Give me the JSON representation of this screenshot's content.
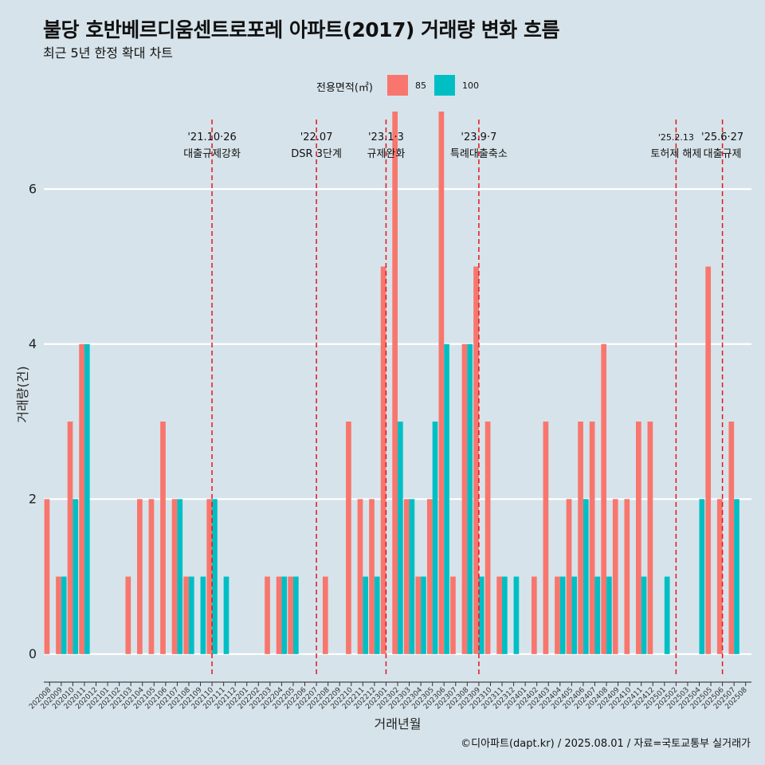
{
  "title": "불당 호반베르디움센트로포레 아파트(2017) 거래량 변화 흐름",
  "subtitle": "최근 5년 한정 확대 차트",
  "caption": "©디아파트(dapt.kr) / 2025.08.01 / 자료=국토교통부 실거래가",
  "legend": {
    "title": "전용면적(㎡)",
    "items": [
      {
        "label": "85",
        "color": "#F8766D"
      },
      {
        "label": "100",
        "color": "#00BFC4"
      }
    ]
  },
  "chart_data": {
    "type": "bar",
    "xlabel": "거래년월",
    "ylabel": "거래량(건)",
    "ylim": [
      -0.3,
      7.0
    ],
    "yticks": [
      0,
      2,
      4,
      6
    ],
    "grid": true,
    "legend_position": "top",
    "categories": [
      "202008",
      "202009",
      "202010",
      "202011",
      "202012",
      "202101",
      "202102",
      "202103",
      "202104",
      "202105",
      "202106",
      "202107",
      "202108",
      "202109",
      "202110",
      "202111",
      "202112",
      "202201",
      "202202",
      "202203",
      "202204",
      "202205",
      "202206",
      "202207",
      "202208",
      "202209",
      "202210",
      "202211",
      "202212",
      "202301",
      "202302",
      "202303",
      "202304",
      "202305",
      "202306",
      "202307",
      "202308",
      "202309",
      "202310",
      "202311",
      "202312",
      "202401",
      "202402",
      "202403",
      "202404",
      "202405",
      "202406",
      "202407",
      "202408",
      "202409",
      "202410",
      "202411",
      "202412",
      "202501",
      "202502",
      "202503",
      "202504",
      "202505",
      "202506",
      "202507",
      "202508"
    ],
    "series": [
      {
        "name": "85",
        "color": "#F8766D",
        "values": [
          2,
          1,
          3,
          4,
          0,
          0,
          0,
          1,
          2,
          2,
          3,
          2,
          1,
          0,
          2,
          0,
          0,
          0,
          0,
          1,
          1,
          1,
          0,
          0,
          1,
          0,
          3,
          2,
          2,
          5,
          7,
          2,
          1,
          2,
          7,
          1,
          4,
          5,
          3,
          1,
          0,
          0,
          1,
          3,
          1,
          2,
          3,
          3,
          4,
          2,
          2,
          3,
          3,
          0,
          0,
          0,
          0,
          5,
          2,
          3,
          0
        ]
      },
      {
        "name": "100",
        "color": "#00BFC4",
        "values": [
          0,
          1,
          2,
          4,
          0,
          0,
          0,
          0,
          0,
          0,
          0,
          2,
          1,
          1,
          2,
          1,
          0,
          0,
          0,
          0,
          1,
          1,
          0,
          0,
          0,
          0,
          0,
          1,
          1,
          0,
          3,
          2,
          1,
          3,
          4,
          0,
          4,
          1,
          0,
          1,
          1,
          0,
          0,
          0,
          1,
          1,
          2,
          1,
          1,
          0,
          0,
          1,
          0,
          1,
          0,
          0,
          2,
          0,
          0,
          2,
          0
        ]
      }
    ],
    "annotations": [
      {
        "x": "202110",
        "date": "'21.10·26",
        "text": "대출규제강화"
      },
      {
        "x": "202207",
        "date": "'22.07",
        "text": "DSR 3단계"
      },
      {
        "x": "202301",
        "date": "'23.1·3",
        "text": "규제완화"
      },
      {
        "x": "202309",
        "date": "'23.9·7",
        "text": "특례대출축소"
      },
      {
        "x": "202502",
        "date": "'25.2.13",
        "text": "토허제 해제"
      },
      {
        "x": "202506",
        "date": "'25.6·27",
        "text": "대출규제"
      }
    ]
  }
}
